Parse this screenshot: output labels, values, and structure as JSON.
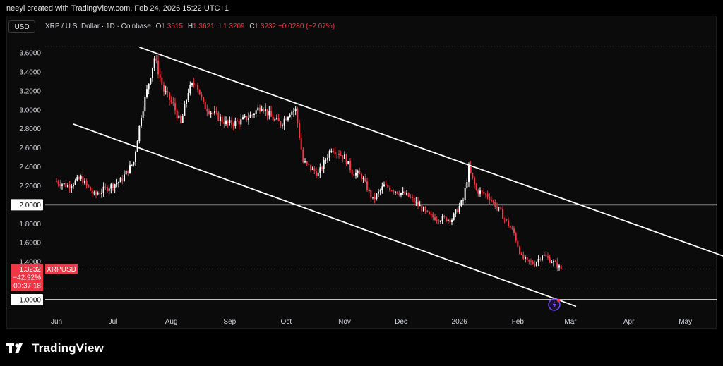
{
  "caption": "neeyi created with TradingView.com, Feb 24, 2026 15:22 UTC+1",
  "toolbar": {
    "currency": "USD"
  },
  "legend": {
    "symbol": "XRP / U.S. Dollar · 1D · Coinbase",
    "open_label": "O",
    "open": "1.3515",
    "high_label": "H",
    "high": "1.3621",
    "low_label": "L",
    "low": "1.3209",
    "close_label": "C",
    "close": "1.3232",
    "change": "−0.0280 (−2.07%)"
  },
  "price_tag": {
    "price": "1.3232",
    "symbol": "XRPUSD",
    "change_pct": "−42.92%",
    "countdown": "09:37:18"
  },
  "level_tags": [
    "2.0000",
    "1.0000"
  ],
  "brand": {
    "name": "TradingView"
  },
  "colors": {
    "up": "#ffffff",
    "down": "#f23645",
    "lines": "#ffffff",
    "background": "#0b0b0b",
    "accent": "#7b4dff"
  },
  "chart_data": {
    "type": "candlestick",
    "title": "",
    "xlabel": "",
    "ylabel": "",
    "y_ticks": [
      "3.6000",
      "3.4000",
      "3.2000",
      "3.0000",
      "2.8000",
      "2.6000",
      "2.4000",
      "2.2000",
      "1.8000",
      "1.6000",
      "1.4000"
    ],
    "ylim": [
      0.8,
      3.8
    ],
    "x_ticks": [
      "Jun",
      "Jul",
      "Aug",
      "Sep",
      "Oct",
      "Nov",
      "Dec",
      "2026",
      "Feb",
      "Mar",
      "Apr",
      "May"
    ],
    "grid": false,
    "horizontal_levels": [
      2.0,
      1.0
    ],
    "trendlines": [
      {
        "from": [
          "2025-07-15",
          3.66
        ],
        "to": [
          "2026-05-31",
          1.39
        ]
      },
      {
        "from": [
          "2025-06-10",
          2.85
        ],
        "to": [
          "2026-03-04",
          0.93
        ]
      }
    ],
    "close_series": {
      "dates": [
        "2025-05-31",
        "2025-06-07",
        "2025-06-14",
        "2025-06-21",
        "2025-06-28",
        "2025-07-05",
        "2025-07-12",
        "2025-07-16",
        "2025-07-19",
        "2025-07-23",
        "2025-07-28",
        "2025-08-02",
        "2025-08-06",
        "2025-08-10",
        "2025-08-14",
        "2025-08-18",
        "2025-08-24",
        "2025-08-31",
        "2025-09-07",
        "2025-09-13",
        "2025-09-18",
        "2025-09-23",
        "2025-09-28",
        "2025-10-03",
        "2025-10-06",
        "2025-10-10",
        "2025-10-13",
        "2025-10-18",
        "2025-10-25",
        "2025-11-01",
        "2025-11-05",
        "2025-11-10",
        "2025-11-16",
        "2025-11-22",
        "2025-11-28",
        "2025-12-04",
        "2025-12-10",
        "2025-12-16",
        "2025-12-22",
        "2025-12-28",
        "2026-01-03",
        "2026-01-06",
        "2026-01-10",
        "2026-01-16",
        "2026-01-22",
        "2026-01-26",
        "2026-01-30",
        "2026-02-03",
        "2026-02-06",
        "2026-02-10",
        "2026-02-14",
        "2026-02-18",
        "2026-02-21",
        "2026-02-24"
      ],
      "values": [
        2.25,
        2.2,
        2.28,
        2.1,
        2.18,
        2.25,
        2.45,
        2.95,
        3.2,
        3.55,
        3.2,
        3.05,
        2.85,
        3.2,
        3.3,
        3.05,
        2.95,
        2.85,
        2.88,
        2.95,
        3.05,
        2.92,
        2.85,
        2.98,
        3.0,
        2.45,
        2.4,
        2.32,
        2.6,
        2.5,
        2.35,
        2.3,
        2.05,
        2.2,
        2.15,
        2.1,
        2.0,
        1.88,
        1.85,
        1.85,
        2.05,
        2.38,
        2.15,
        2.1,
        1.95,
        1.82,
        1.7,
        1.45,
        1.4,
        1.38,
        1.48,
        1.42,
        1.38,
        1.3232
      ]
    },
    "last": {
      "open": 1.3515,
      "high": 1.3621,
      "low": 1.3209,
      "close": 1.3232
    }
  }
}
